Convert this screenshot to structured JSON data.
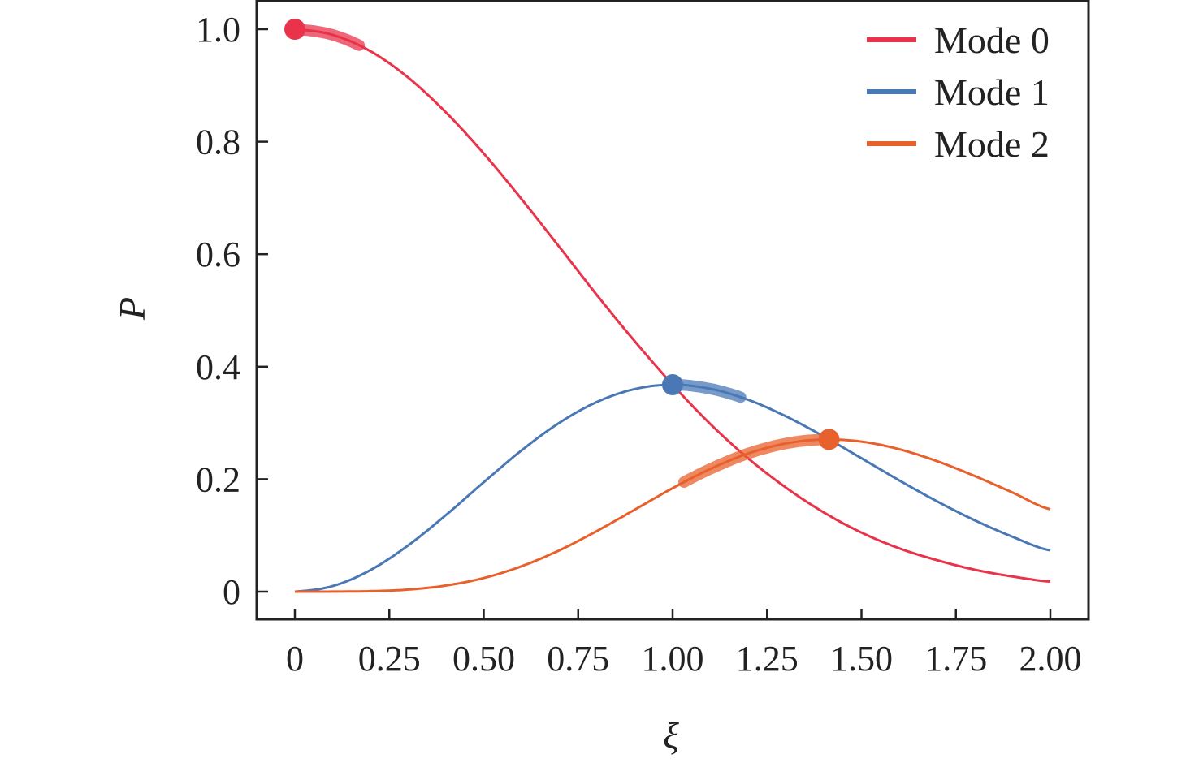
{
  "chart_data": {
    "type": "line",
    "title": "",
    "xlabel": "ξ",
    "ylabel": "P",
    "xlim": [
      -0.1,
      2.1
    ],
    "ylim": [
      -0.05,
      1.05
    ],
    "xticks": [
      0,
      0.25,
      0.5,
      0.75,
      1.0,
      1.25,
      1.5,
      1.75,
      2.0
    ],
    "xtick_labels": [
      "0",
      "0.25",
      "0.50",
      "0.75",
      "1.00",
      "1.25",
      "1.50",
      "1.75",
      "2.00"
    ],
    "yticks": [
      0,
      0.2,
      0.4,
      0.6,
      0.8,
      1.0
    ],
    "ytick_labels": [
      "0",
      "0.2",
      "0.4",
      "0.6",
      "0.8",
      "1.0"
    ],
    "grid": false,
    "legend_position": "top-right",
    "x": [
      0,
      0.1,
      0.2,
      0.3,
      0.4,
      0.5,
      0.6,
      0.7,
      0.8,
      0.9,
      1.0,
      1.1,
      1.2,
      1.3,
      1.4,
      1.5,
      1.6,
      1.7,
      1.8,
      1.9,
      2.0
    ],
    "series": [
      {
        "name": "Mode 0",
        "color": "#e8334a",
        "values": [
          1.0,
          0.99,
          0.961,
          0.914,
          0.852,
          0.779,
          0.698,
          0.613,
          0.527,
          0.445,
          0.368,
          0.298,
          0.237,
          0.185,
          0.141,
          0.105,
          0.077,
          0.056,
          0.039,
          0.027,
          0.018
        ],
        "highlight": {
          "from": 0.0,
          "to": 0.17,
          "dot": 0.0
        }
      },
      {
        "name": "Mode 1",
        "color": "#4a78b5",
        "values": [
          0,
          0.0099,
          0.0384,
          0.0823,
          0.1363,
          0.1947,
          0.2512,
          0.3002,
          0.3375,
          0.3603,
          0.368,
          0.3608,
          0.3412,
          0.3118,
          0.2761,
          0.2372,
          0.1979,
          0.1606,
          0.1269,
          0.0976,
          0.0733
        ],
        "highlight": {
          "from": 1.0,
          "to": 1.18,
          "dot": 1.0
        }
      },
      {
        "name": "Mode 2",
        "color": "#e8602c",
        "values": [
          0,
          0.0001,
          0.0008,
          0.0037,
          0.0109,
          0.0243,
          0.0452,
          0.0735,
          0.108,
          0.1459,
          0.184,
          0.2183,
          0.2457,
          0.2635,
          0.2706,
          0.2668,
          0.2533,
          0.2321,
          0.2056,
          0.1762,
          0.1465
        ],
        "highlight": {
          "from": 1.03,
          "to": 1.414,
          "dot": 1.414
        }
      }
    ]
  }
}
